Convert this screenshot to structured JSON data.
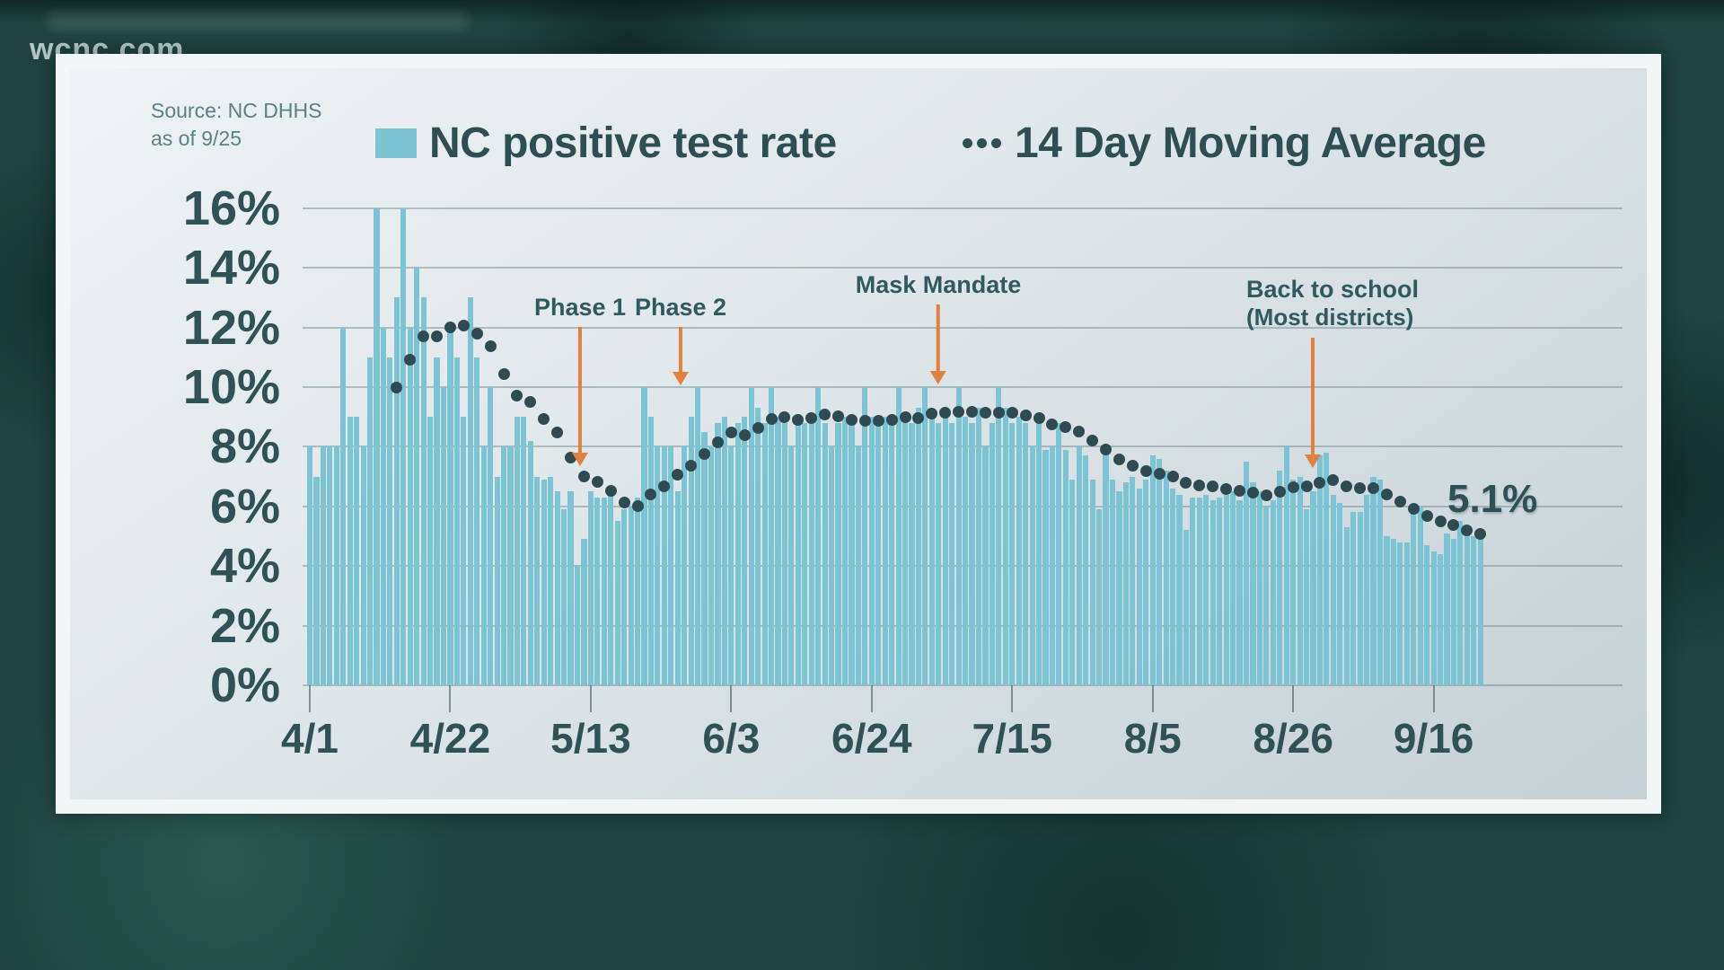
{
  "watermark": "wcnc.com",
  "source": {
    "line1": "Source: NC DHHS",
    "line2": "as of 9/25"
  },
  "legend": [
    {
      "label": "NC positive test rate",
      "swatch": "bar"
    },
    {
      "label": "14 Day Moving Average",
      "swatch": "dots"
    }
  ],
  "annotations": [
    {
      "id": "phase-1",
      "label": "Phase 1",
      "day_index": 40
    },
    {
      "id": "phase-2",
      "label": "Phase 2",
      "day_index": 55
    },
    {
      "id": "mask-mandate",
      "label": "Mask Mandate",
      "day_index": 94
    },
    {
      "id": "back-to-school",
      "label": "Back to school",
      "sublabel": "(Most districts)",
      "day_index": 151
    }
  ],
  "end_label": "5.1%",
  "colors": {
    "bar": "#7cc3d3",
    "moving_average_dot": "#2e4b51",
    "annotation_arrow": "#e0813f",
    "axis_text": "#2f5257",
    "background": "#1e4340"
  },
  "chart_data": {
    "type": "bar",
    "title": "",
    "xlabel": "",
    "ylabel": "",
    "ylim": [
      0,
      16
    ],
    "grid": true,
    "x_start": "4/1",
    "x_end": "9/23",
    "x_tick_labels": [
      "4/1",
      "4/22",
      "5/13",
      "6/3",
      "6/24",
      "7/15",
      "8/5",
      "8/26",
      "9/16"
    ],
    "x_tick_interval_days": 21,
    "y_tick_labels": [
      "0%",
      "2%",
      "4%",
      "6%",
      "8%",
      "10%",
      "12%",
      "14%",
      "16%"
    ],
    "series": [
      {
        "name": "NC positive test rate",
        "type": "bar",
        "unit": "%",
        "values": [
          8,
          7,
          8,
          8,
          8,
          12,
          9,
          9,
          8,
          11,
          16,
          12,
          11,
          13,
          16,
          12,
          14,
          13,
          9,
          11,
          10,
          12,
          11,
          9,
          13,
          11,
          8,
          10,
          7,
          8,
          8,
          9,
          9,
          8.2,
          7,
          6.9,
          7,
          6.5,
          5.9,
          6.5,
          4,
          4.9,
          6.5,
          6.3,
          6.3,
          6.5,
          5.5,
          5.9,
          6,
          6.3,
          10,
          9,
          8,
          8,
          8,
          6.5,
          8,
          9,
          10,
          8.5,
          8,
          8.8,
          9,
          8,
          8.8,
          9,
          10,
          9.3,
          8.8,
          10,
          9,
          8.8,
          8,
          9,
          8.8,
          9,
          10,
          8.8,
          8,
          8.8,
          9,
          8.8,
          8,
          10,
          9,
          8.8,
          9,
          8.8,
          10,
          9,
          8.8,
          9.3,
          10,
          9,
          8.8,
          9.3,
          8.8,
          10,
          9,
          8.8,
          9.3,
          8,
          8.8,
          10,
          9.3,
          8.8,
          9,
          8.8,
          8,
          8.8,
          7.9,
          8,
          8.8,
          7.9,
          6.9,
          8,
          7.7,
          6.9,
          5.9,
          7.9,
          6.9,
          6.5,
          6.8,
          7,
          6.6,
          6.9,
          7.7,
          7.6,
          7.2,
          6.6,
          6.4,
          5.2,
          6.3,
          6.3,
          6.4,
          6.2,
          6.3,
          6.4,
          6.5,
          6.2,
          7.5,
          6.8,
          6.5,
          6,
          6.2,
          7.2,
          8,
          6.9,
          7,
          5.9,
          6.5,
          7.7,
          7.8,
          6.4,
          6.1,
          5.3,
          5.8,
          5.8,
          6.4,
          7,
          6.9,
          5,
          4.9,
          4.8,
          4.8,
          5.9,
          6,
          4.7,
          4.5,
          4.4,
          5.1,
          4.9,
          5.5,
          5.3,
          5,
          5.2
        ]
      },
      {
        "name": "14 Day Moving Average",
        "type": "dotted-line",
        "unit": "%",
        "derived_from": "14-day moving average of daily bar values",
        "final_value": 5.1
      }
    ],
    "legend_position": "top"
  }
}
